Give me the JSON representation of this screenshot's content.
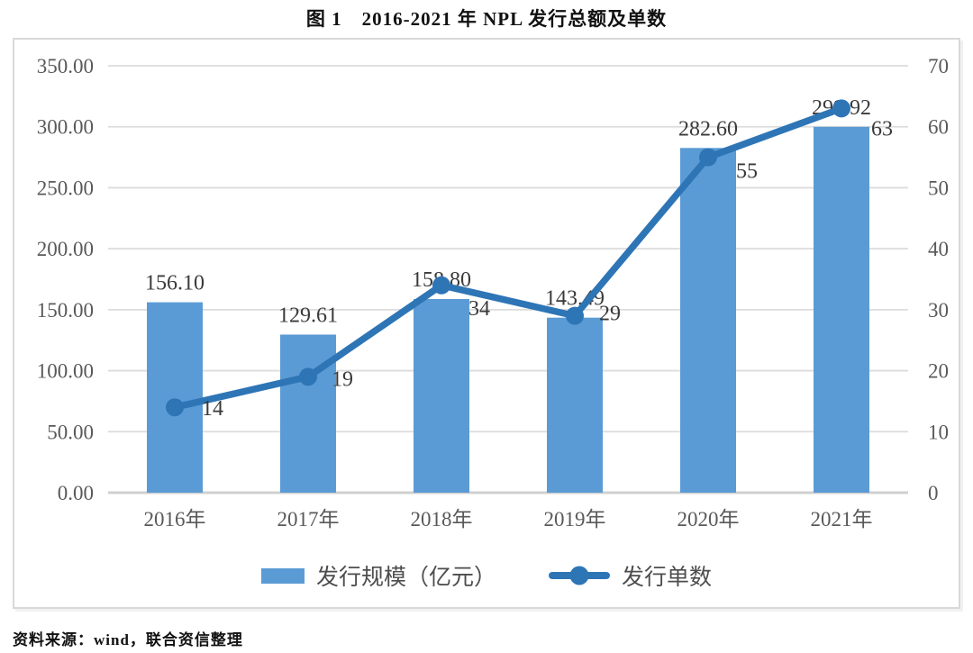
{
  "page": {
    "title": "图 1　2016-2021 年 NPL 发行总额及单数",
    "source_note": "资料来源：wind，联合资信整理"
  },
  "colors": {
    "bar_fill": "#5B9BD5",
    "line_stroke": "#2E75B6",
    "gridline": "#DCDCDC",
    "axis_baseline": "#D0D0D0",
    "axis_tick_text": "#595959",
    "data_label_text": "#3A3A3A",
    "chart_border": "#D9D9D9",
    "background": "#FFFFFF"
  },
  "chart_data": {
    "type": "combo: bar (left axis) + line (right axis)",
    "title": "图 1　2016-2021 年 NPL 发行总额及单数",
    "categories": [
      "2016年",
      "2017年",
      "2018年",
      "2019年",
      "2020年",
      "2021年"
    ],
    "series": [
      {
        "name": "发行规模（亿元）",
        "type": "bar",
        "axis": "left",
        "values": [
          156.1,
          129.61,
          158.8,
          143.49,
          282.6,
          299.92
        ],
        "data_labels": [
          "156.10",
          "129.61",
          "158.80",
          "143.49",
          "282.60",
          "299.92"
        ]
      },
      {
        "name": "发行单数",
        "type": "line",
        "axis": "right",
        "values": [
          14,
          19,
          34,
          29,
          55,
          63
        ],
        "data_labels": [
          "14",
          "19",
          "34",
          "29",
          "55",
          "63"
        ]
      }
    ],
    "left_axis": {
      "min": 0,
      "max": 350,
      "step": 50,
      "tick_labels": [
        "0.00",
        "50.00",
        "100.00",
        "150.00",
        "200.00",
        "250.00",
        "300.00",
        "350.00"
      ]
    },
    "right_axis": {
      "min": 0,
      "max": 70,
      "step": 10,
      "tick_labels": [
        "0",
        "10",
        "20",
        "30",
        "40",
        "50",
        "60",
        "70"
      ]
    },
    "grid": "horizontal gridlines on",
    "legend_position": "bottom"
  }
}
